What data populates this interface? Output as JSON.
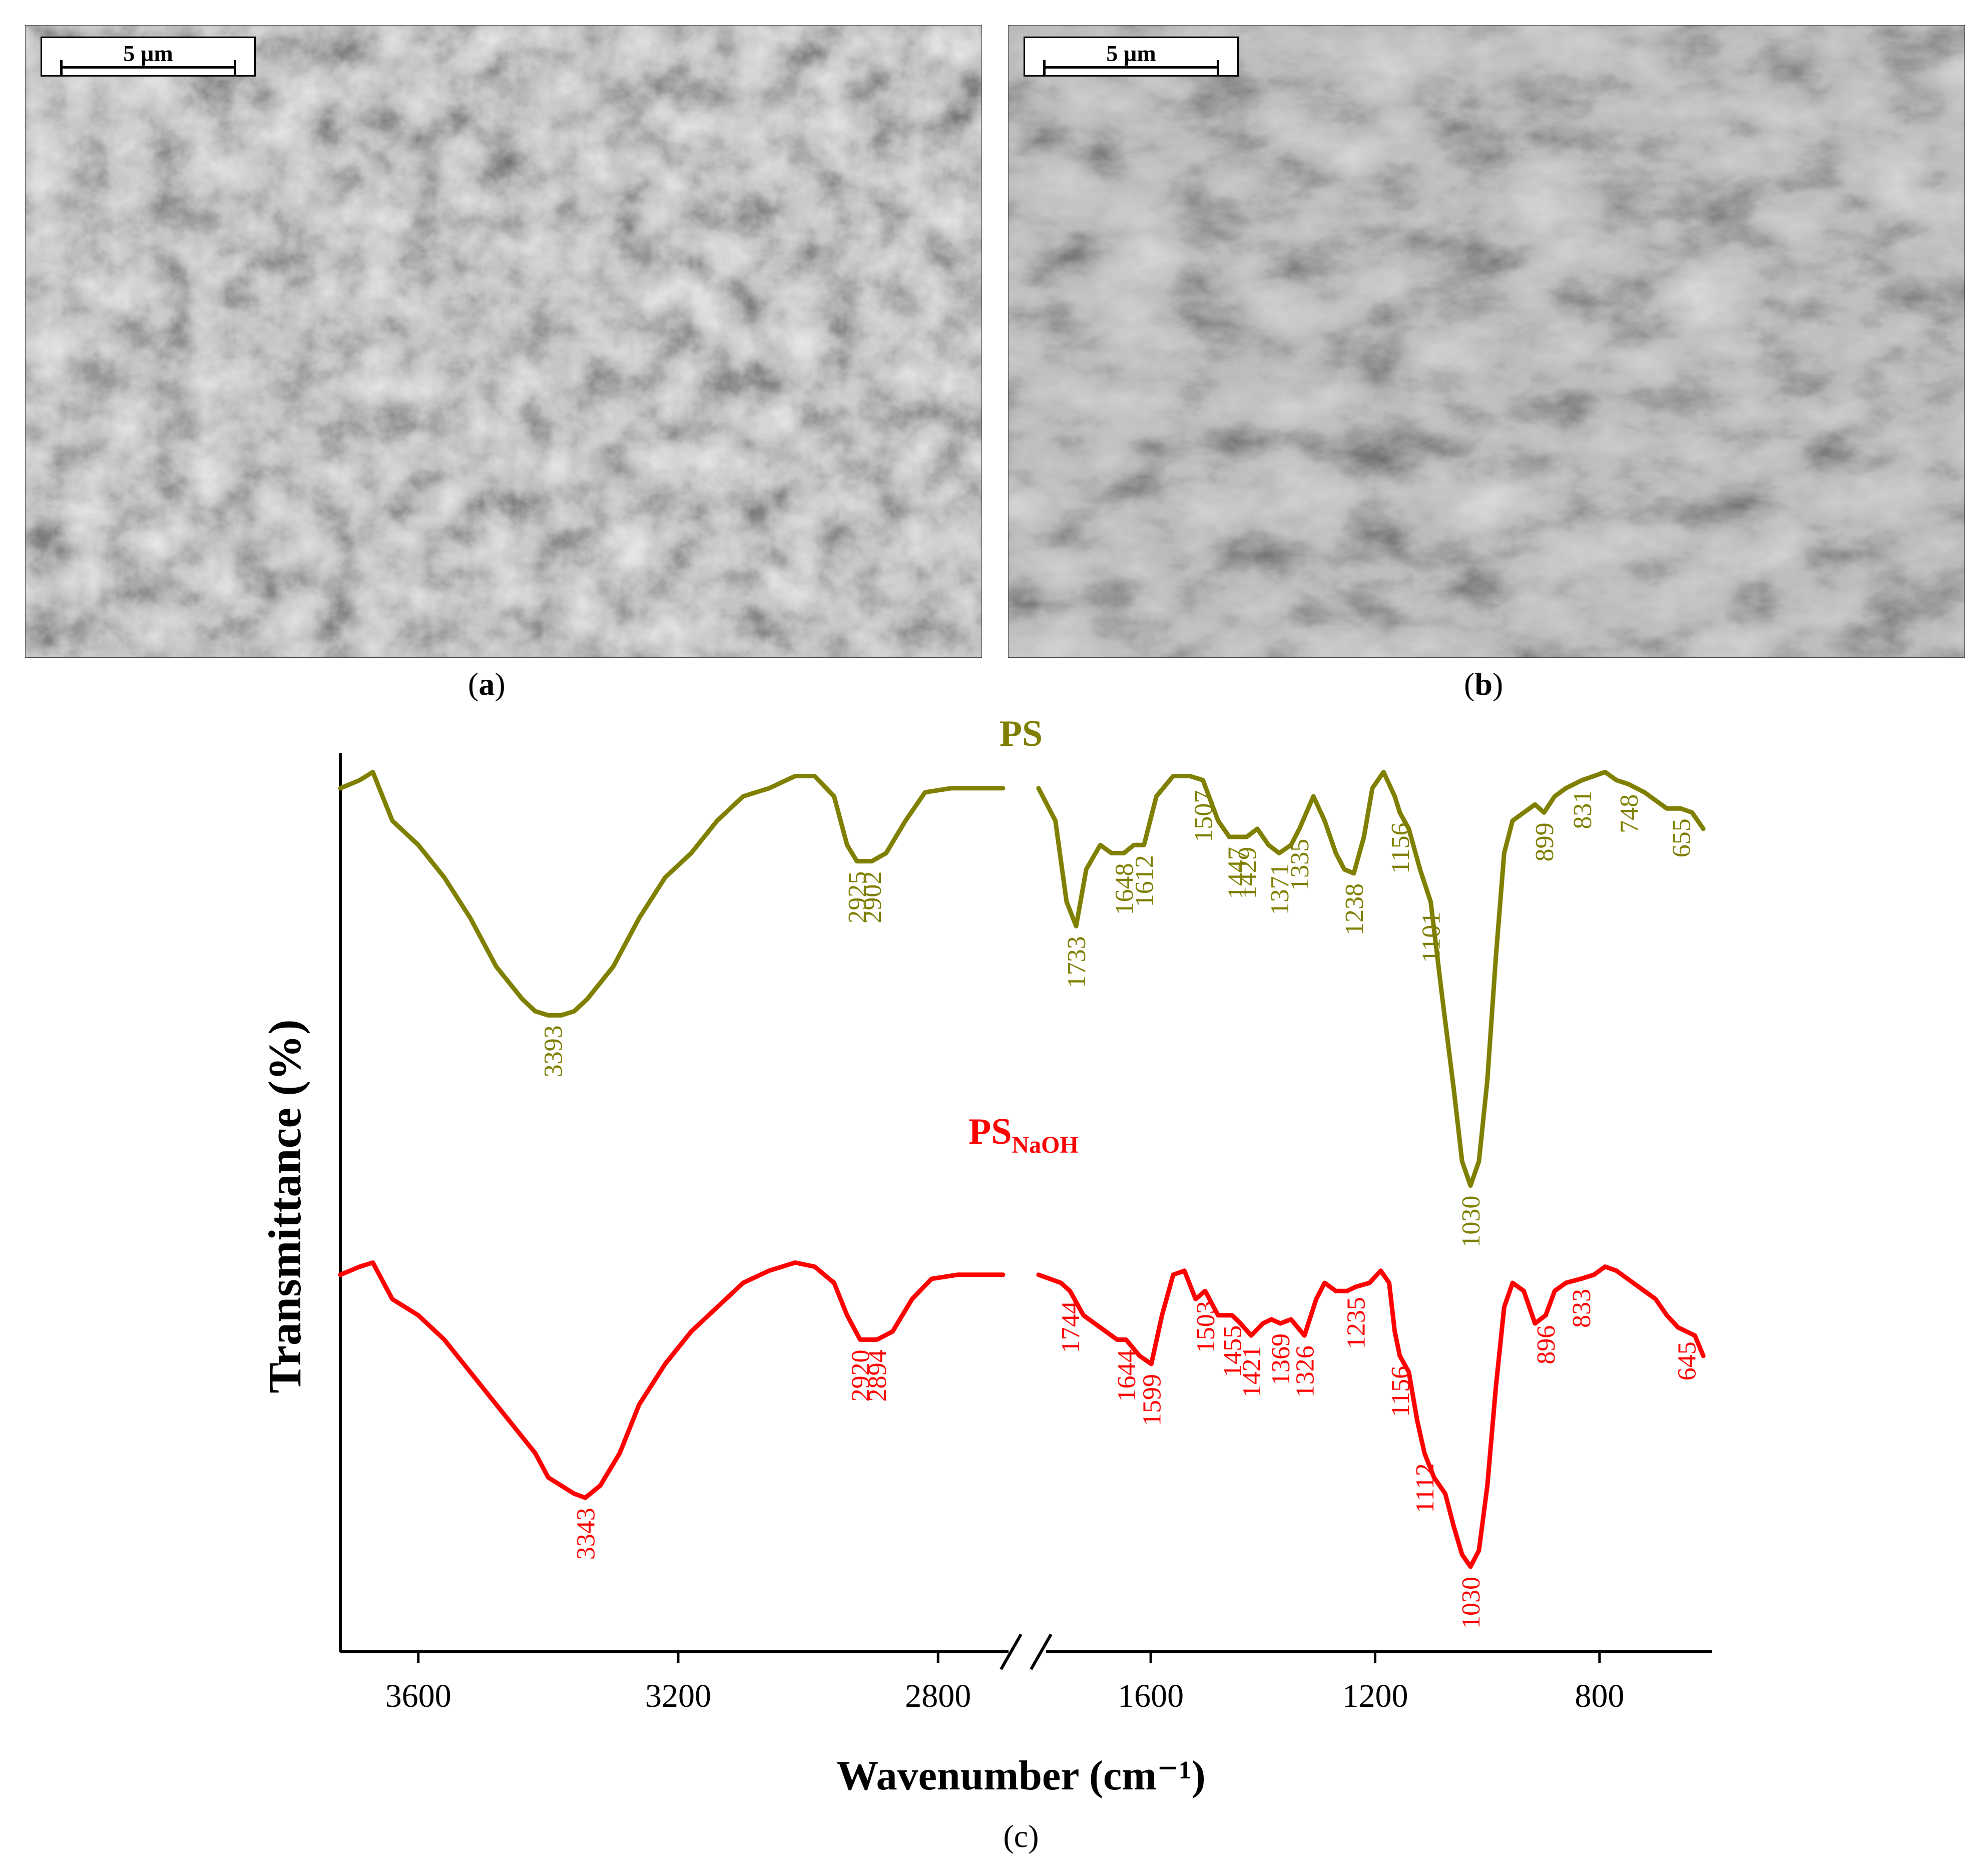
{
  "figure": {
    "panel_a": {
      "label_open": "(",
      "label_letter": "a",
      "label_close": ")",
      "scale_bar": "5 µm"
    },
    "panel_b": {
      "label_open": "(",
      "label_letter": "b",
      "label_close": ")",
      "scale_bar": "5 µm"
    },
    "panel_c": {
      "label": "(c)"
    }
  },
  "colors": {
    "ps": "#7f7f00",
    "ps_naoh": "#ff0000",
    "axis": "#000000"
  },
  "chart_data": {
    "type": "line",
    "xlabel": "Wavenumber (cm⁻¹)",
    "ylabel": "Transmittance (%)",
    "x_axis_break": [
      2680,
      1800
    ],
    "xlim_left_segment": [
      3720,
      2680
    ],
    "xlim_right_segment": [
      1800,
      600
    ],
    "x_ticks": [
      3600,
      3200,
      2800,
      1600,
      1200,
      800
    ],
    "y_ticks_shown": false,
    "ylim": [
      0,
      100
    ],
    "series": [
      {
        "name": "PS",
        "name_sub": "",
        "color": "#7f7f00",
        "points": [
          [
            3720,
            96
          ],
          [
            3690,
            97
          ],
          [
            3670,
            98
          ],
          [
            3640,
            92
          ],
          [
            3600,
            89
          ],
          [
            3560,
            85
          ],
          [
            3520,
            80
          ],
          [
            3480,
            74
          ],
          [
            3440,
            70
          ],
          [
            3420,
            68.5
          ],
          [
            3400,
            68
          ],
          [
            3380,
            68
          ],
          [
            3360,
            68.5
          ],
          [
            3340,
            70
          ],
          [
            3300,
            74
          ],
          [
            3260,
            80
          ],
          [
            3220,
            85
          ],
          [
            3180,
            88
          ],
          [
            3140,
            92
          ],
          [
            3100,
            95
          ],
          [
            3060,
            96
          ],
          [
            3020,
            97.5
          ],
          [
            2990,
            97.5
          ],
          [
            2960,
            95
          ],
          [
            2940,
            89
          ],
          [
            2925,
            87
          ],
          [
            2902,
            87
          ],
          [
            2880,
            88
          ],
          [
            2850,
            92
          ],
          [
            2820,
            95.5
          ],
          [
            2780,
            96
          ],
          [
            2740,
            96
          ],
          [
            2700,
            96
          ],
          [
            1800,
            96
          ],
          [
            1770,
            92
          ],
          [
            1750,
            82
          ],
          [
            1733,
            79
          ],
          [
            1715,
            86
          ],
          [
            1690,
            89
          ],
          [
            1670,
            88
          ],
          [
            1648,
            88
          ],
          [
            1630,
            89
          ],
          [
            1612,
            89
          ],
          [
            1590,
            95
          ],
          [
            1560,
            97.5
          ],
          [
            1530,
            97.5
          ],
          [
            1507,
            97
          ],
          [
            1480,
            92
          ],
          [
            1460,
            90
          ],
          [
            1447,
            90
          ],
          [
            1429,
            90
          ],
          [
            1410,
            91
          ],
          [
            1390,
            89
          ],
          [
            1371,
            88
          ],
          [
            1350,
            89
          ],
          [
            1335,
            91
          ],
          [
            1310,
            95
          ],
          [
            1290,
            92
          ],
          [
            1270,
            88
          ],
          [
            1255,
            86
          ],
          [
            1238,
            85.5
          ],
          [
            1220,
            90
          ],
          [
            1205,
            96
          ],
          [
            1185,
            98
          ],
          [
            1165,
            95
          ],
          [
            1156,
            93
          ],
          [
            1140,
            91
          ],
          [
            1120,
            86
          ],
          [
            1101,
            82
          ],
          [
            1080,
            70
          ],
          [
            1060,
            59
          ],
          [
            1045,
            50
          ],
          [
            1030,
            47
          ],
          [
            1015,
            50
          ],
          [
            1000,
            60
          ],
          [
            985,
            75
          ],
          [
            970,
            88
          ],
          [
            955,
            92
          ],
          [
            935,
            93
          ],
          [
            915,
            94
          ],
          [
            899,
            93
          ],
          [
            880,
            95
          ],
          [
            860,
            96
          ],
          [
            831,
            97
          ],
          [
            810,
            97.5
          ],
          [
            790,
            98
          ],
          [
            770,
            97
          ],
          [
            748,
            96.5
          ],
          [
            720,
            95.5
          ],
          [
            700,
            94.5
          ],
          [
            680,
            93.5
          ],
          [
            655,
            93.5
          ],
          [
            635,
            93
          ],
          [
            615,
            91
          ]
        ]
      },
      {
        "name": "PS",
        "name_sub": "NaOH",
        "color": "#ff0000",
        "points": [
          [
            3720,
            36
          ],
          [
            3690,
            37
          ],
          [
            3670,
            37.5
          ],
          [
            3640,
            33
          ],
          [
            3600,
            31
          ],
          [
            3560,
            28
          ],
          [
            3520,
            24
          ],
          [
            3480,
            20
          ],
          [
            3440,
            16
          ],
          [
            3420,
            14
          ],
          [
            3400,
            11
          ],
          [
            3380,
            10
          ],
          [
            3360,
            9
          ],
          [
            3343,
            8.5
          ],
          [
            3320,
            10
          ],
          [
            3290,
            14
          ],
          [
            3260,
            20
          ],
          [
            3220,
            25
          ],
          [
            3180,
            29
          ],
          [
            3140,
            32
          ],
          [
            3100,
            35
          ],
          [
            3060,
            36.5
          ],
          [
            3020,
            37.5
          ],
          [
            2990,
            37
          ],
          [
            2960,
            35
          ],
          [
            2940,
            31
          ],
          [
            2920,
            28
          ],
          [
            2894,
            28
          ],
          [
            2870,
            29
          ],
          [
            2840,
            33
          ],
          [
            2810,
            35.5
          ],
          [
            2770,
            36
          ],
          [
            2730,
            36
          ],
          [
            2700,
            36
          ],
          [
            1800,
            36
          ],
          [
            1760,
            35
          ],
          [
            1744,
            34
          ],
          [
            1720,
            31
          ],
          [
            1700,
            30
          ],
          [
            1680,
            29
          ],
          [
            1660,
            28
          ],
          [
            1644,
            28
          ],
          [
            1620,
            26
          ],
          [
            1599,
            25
          ],
          [
            1580,
            31
          ],
          [
            1560,
            36
          ],
          [
            1540,
            36.5
          ],
          [
            1520,
            33
          ],
          [
            1503,
            34
          ],
          [
            1480,
            31
          ],
          [
            1455,
            31
          ],
          [
            1440,
            30
          ],
          [
            1421,
            28.5
          ],
          [
            1400,
            30
          ],
          [
            1385,
            30.5
          ],
          [
            1369,
            30
          ],
          [
            1350,
            30.5
          ],
          [
            1326,
            28.5
          ],
          [
            1305,
            33
          ],
          [
            1290,
            35
          ],
          [
            1270,
            34
          ],
          [
            1250,
            34
          ],
          [
            1235,
            34.5
          ],
          [
            1210,
            35
          ],
          [
            1190,
            36.5
          ],
          [
            1175,
            35
          ],
          [
            1165,
            29
          ],
          [
            1156,
            26
          ],
          [
            1140,
            24
          ],
          [
            1125,
            18
          ],
          [
            1112,
            14
          ],
          [
            1095,
            11
          ],
          [
            1075,
            9
          ],
          [
            1060,
            5
          ],
          [
            1045,
            1.5
          ],
          [
            1030,
            0
          ],
          [
            1015,
            2
          ],
          [
            1000,
            10
          ],
          [
            985,
            22
          ],
          [
            970,
            32
          ],
          [
            955,
            35
          ],
          [
            935,
            34
          ],
          [
            915,
            30
          ],
          [
            896,
            31
          ],
          [
            880,
            34
          ],
          [
            860,
            35
          ],
          [
            833,
            35.5
          ],
          [
            810,
            36
          ],
          [
            790,
            37
          ],
          [
            770,
            36.5
          ],
          [
            750,
            35.5
          ],
          [
            720,
            34
          ],
          [
            700,
            33
          ],
          [
            680,
            31
          ],
          [
            660,
            29.5
          ],
          [
            645,
            29
          ],
          [
            630,
            28.5
          ],
          [
            615,
            26
          ]
        ]
      }
    ],
    "annotations": [
      {
        "series": "PS",
        "text": "3393",
        "x": 3393
      },
      {
        "series": "PS",
        "text": "2925",
        "x": 2925
      },
      {
        "series": "PS",
        "text": "2902",
        "x": 2902
      },
      {
        "series": "PS",
        "text": "1733",
        "x": 1733
      },
      {
        "series": "PS",
        "text": "1648",
        "x": 1648
      },
      {
        "series": "PS",
        "text": "1612",
        "x": 1612
      },
      {
        "series": "PS",
        "text": "1507",
        "x": 1507
      },
      {
        "series": "PS",
        "text": "1447",
        "x": 1447
      },
      {
        "series": "PS",
        "text": "1429",
        "x": 1429
      },
      {
        "series": "PS",
        "text": "1371",
        "x": 1371
      },
      {
        "series": "PS",
        "text": "1335",
        "x": 1335
      },
      {
        "series": "PS",
        "text": "1238",
        "x": 1238
      },
      {
        "series": "PS",
        "text": "1156",
        "x": 1156
      },
      {
        "series": "PS",
        "text": "1101",
        "x": 1101
      },
      {
        "series": "PS",
        "text": "1030",
        "x": 1030
      },
      {
        "series": "PS",
        "text": "899",
        "x": 899
      },
      {
        "series": "PS",
        "text": "831",
        "x": 831
      },
      {
        "series": "PS",
        "text": "748",
        "x": 748
      },
      {
        "series": "PS",
        "text": "655",
        "x": 655
      },
      {
        "series": "PS_NaOH",
        "text": "3343",
        "x": 3343
      },
      {
        "series": "PS_NaOH",
        "text": "2920",
        "x": 2920
      },
      {
        "series": "PS_NaOH",
        "text": "2894",
        "x": 2894
      },
      {
        "series": "PS_NaOH",
        "text": "1744",
        "x": 1744
      },
      {
        "series": "PS_NaOH",
        "text": "1644",
        "x": 1644
      },
      {
        "series": "PS_NaOH",
        "text": "1599",
        "x": 1599
      },
      {
        "series": "PS_NaOH",
        "text": "1503",
        "x": 1503
      },
      {
        "series": "PS_NaOH",
        "text": "1455",
        "x": 1455
      },
      {
        "series": "PS_NaOH",
        "text": "1421",
        "x": 1421
      },
      {
        "series": "PS_NaOH",
        "text": "1369",
        "x": 1369
      },
      {
        "series": "PS_NaOH",
        "text": "1326",
        "x": 1326
      },
      {
        "series": "PS_NaOH",
        "text": "1235",
        "x": 1235
      },
      {
        "series": "PS_NaOH",
        "text": "1156",
        "x": 1156
      },
      {
        "series": "PS_NaOH",
        "text": "1112",
        "x": 1112
      },
      {
        "series": "PS_NaOH",
        "text": "1030",
        "x": 1030
      },
      {
        "series": "PS_NaOH",
        "text": "896",
        "x": 896
      },
      {
        "series": "PS_NaOH",
        "text": "833",
        "x": 833
      },
      {
        "series": "PS_NaOH",
        "text": "645",
        "x": 645
      }
    ]
  }
}
